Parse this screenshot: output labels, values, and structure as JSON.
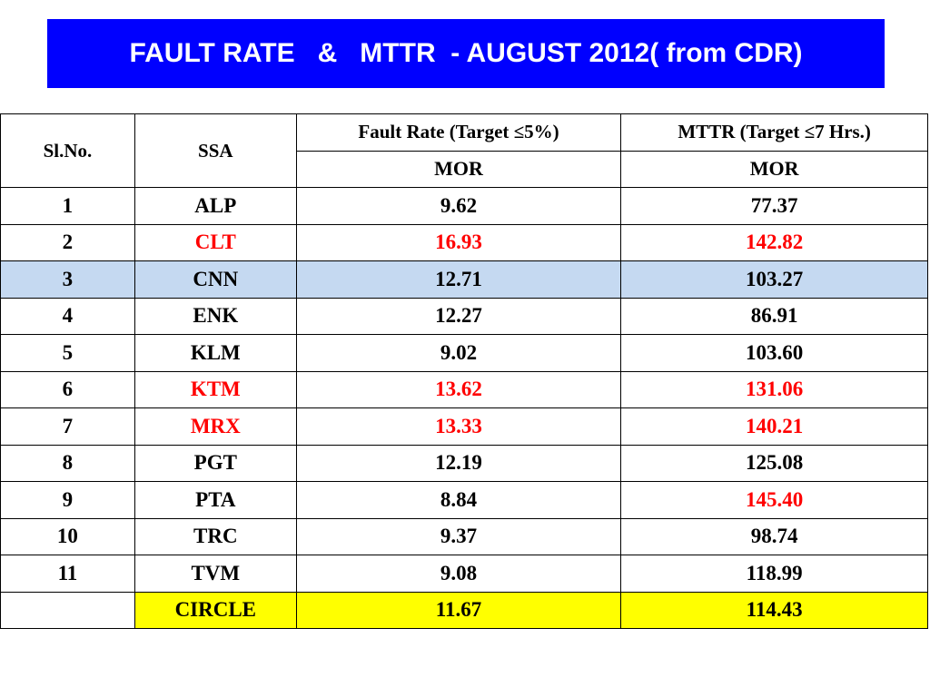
{
  "title": "FAULT RATE   &   MTTR  - AUGUST 2012( from CDR)",
  "colors": {
    "title_bg": "#0000ff",
    "alert": "#ff0000",
    "highlight_row": "#c5d9f1",
    "total_bg": "#ffff00"
  },
  "table": {
    "headers": {
      "slno": "Sl.No.",
      "ssa": "SSA",
      "fault_rate": "Fault Rate (Target ≤5%)",
      "mttr": "MTTR  (Target ≤7 Hrs.)",
      "fault_sub": "MOR",
      "mttr_sub": "MOR"
    },
    "rows": [
      {
        "no": "1",
        "ssa": "ALP",
        "fault": "9.62",
        "mttr": "77.37"
      },
      {
        "no": "2",
        "ssa": "CLT",
        "fault": "16.93",
        "mttr": "142.82"
      },
      {
        "no": "3",
        "ssa": "CNN",
        "fault": "12.71",
        "mttr": "103.27"
      },
      {
        "no": "4",
        "ssa": "ENK",
        "fault": "12.27",
        "mttr": "86.91"
      },
      {
        "no": "5",
        "ssa": "KLM",
        "fault": "9.02",
        "mttr": "103.60"
      },
      {
        "no": "6",
        "ssa": "KTM",
        "fault": "13.62",
        "mttr": "131.06"
      },
      {
        "no": "7",
        "ssa": "MRX",
        "fault": "13.33",
        "mttr": "140.21"
      },
      {
        "no": "8",
        "ssa": "PGT",
        "fault": "12.19",
        "mttr": "125.08"
      },
      {
        "no": "9",
        "ssa": "PTA",
        "fault": "8.84",
        "mttr": "145.40"
      },
      {
        "no": "10",
        "ssa": "TRC",
        "fault": "9.37",
        "mttr": "98.74"
      },
      {
        "no": "11",
        "ssa": "TVM",
        "fault": "9.08",
        "mttr": "118.99"
      }
    ],
    "total": {
      "no": "",
      "ssa": "CIRCLE",
      "fault": "11.67",
      "mttr": "114.43"
    }
  }
}
